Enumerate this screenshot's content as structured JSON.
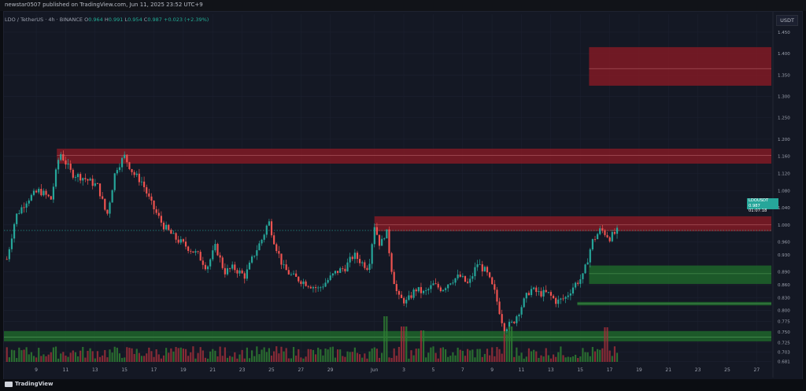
{
  "publisher_line": "newstar0507 published on TradingView.com, Jun 11, 2025 23:52 UTC+9",
  "legend": {
    "symbol": "LDO / TetherUS · 4h · BINANCE",
    "o_label": "O",
    "o": "0.964",
    "h_label": "H",
    "h": "0.991",
    "l_label": "L",
    "l": "0.954",
    "c_label": "C",
    "c": "0.987",
    "change": "+0.023 (+2.39%)"
  },
  "currency": "USDT",
  "price_tag": {
    "symbol": "LDOUSDT",
    "price": "0.987",
    "countdown": "01:07:18"
  },
  "branding": "TradingView",
  "colors": {
    "up": "#26a69a",
    "down": "#ef5350",
    "resistance_zone": "#8b1a24",
    "support_zone": "#1f6b2a",
    "background": "#141824",
    "grid": "#1c2130"
  },
  "chart_data": {
    "type": "candlestick",
    "symbol": "LDO / TetherUS",
    "timeframe": "4h",
    "exchange": "BINANCE",
    "y_range": [
      0.68,
      1.47
    ],
    "y_ticks": [
      "1.450",
      "1.400",
      "1.350",
      "1.300",
      "1.250",
      "1.200",
      "1.160",
      "1.120",
      "1.080",
      "1.040",
      "1.000",
      "0.960",
      "0.930",
      "0.890",
      "0.860",
      "0.830",
      "0.800",
      "0.775",
      "0.750",
      "0.725",
      "0.703",
      "0.681"
    ],
    "y_tick_values": [
      1.45,
      1.4,
      1.35,
      1.3,
      1.25,
      1.2,
      1.16,
      1.12,
      1.08,
      1.04,
      1.0,
      0.96,
      0.93,
      0.89,
      0.86,
      0.83,
      0.8,
      0.775,
      0.75,
      0.725,
      0.703,
      0.681
    ],
    "x_ticks": [
      "9",
      "11",
      "13",
      "15",
      "17",
      "19",
      "21",
      "23",
      "25",
      "27",
      "29",
      "Jun",
      "3",
      "5",
      "7",
      "9",
      "11",
      "13",
      "15",
      "17",
      "19",
      "21",
      "23",
      "25",
      "27"
    ],
    "x_tick_days": [
      -22,
      -20,
      -18,
      -16,
      -14,
      -12,
      -10,
      -8,
      -6,
      -4,
      -2,
      1,
      3,
      5,
      7,
      9,
      11,
      13,
      15,
      17,
      19,
      21,
      23,
      25,
      27
    ],
    "last_close": 0.987,
    "zones": [
      {
        "kind": "resistance",
        "from": 1.325,
        "to": 1.415,
        "mid": 1.365
      },
      {
        "kind": "resistance",
        "from": 1.143,
        "to": 1.178,
        "mid": 1.162
      },
      {
        "kind": "resistance",
        "from": 0.985,
        "to": 1.02,
        "mid": 1.0
      },
      {
        "kind": "support",
        "from": 0.862,
        "to": 0.905,
        "mid": 0.886
      },
      {
        "kind": "support",
        "from": 0.812,
        "to": 0.82,
        "mid": 0.816
      },
      {
        "kind": "support",
        "from": 0.728,
        "to": 0.752,
        "mid": 0.738
      }
    ],
    "price_path": [
      [
        -24.0,
        0.92
      ],
      [
        -23.4,
        1.02
      ],
      [
        -22.6,
        1.06
      ],
      [
        -21.8,
        1.08
      ],
      [
        -21.0,
        1.06
      ],
      [
        -20.4,
        1.17
      ],
      [
        -19.6,
        1.12
      ],
      [
        -18.8,
        1.11
      ],
      [
        -17.8,
        1.09
      ],
      [
        -17.2,
        1.02
      ],
      [
        -16.6,
        1.13
      ],
      [
        -16.0,
        1.16
      ],
      [
        -15.4,
        1.12
      ],
      [
        -14.8,
        1.1
      ],
      [
        -14.2,
        1.05
      ],
      [
        -13.4,
        1.0
      ],
      [
        -12.6,
        0.97
      ],
      [
        -11.8,
        0.95
      ],
      [
        -11.0,
        0.93
      ],
      [
        -10.4,
        0.9
      ],
      [
        -9.8,
        0.95
      ],
      [
        -9.2,
        0.89
      ],
      [
        -8.6,
        0.9
      ],
      [
        -7.8,
        0.88
      ],
      [
        -7.2,
        0.93
      ],
      [
        -6.6,
        0.97
      ],
      [
        -6.2,
        1.01
      ],
      [
        -5.8,
        0.96
      ],
      [
        -5.2,
        0.9
      ],
      [
        -4.6,
        0.88
      ],
      [
        -4.0,
        0.87
      ],
      [
        -3.4,
        0.86
      ],
      [
        -2.8,
        0.85
      ],
      [
        -2.2,
        0.87
      ],
      [
        -1.6,
        0.89
      ],
      [
        -1.0,
        0.9
      ],
      [
        -0.4,
        0.93
      ],
      [
        0.2,
        0.91
      ],
      [
        0.6,
        0.9
      ],
      [
        1.0,
        1.0
      ],
      [
        1.4,
        0.95
      ],
      [
        1.8,
        0.99
      ],
      [
        2.2,
        0.89
      ],
      [
        2.6,
        0.83
      ],
      [
        3.2,
        0.82
      ],
      [
        3.8,
        0.85
      ],
      [
        4.4,
        0.84
      ],
      [
        5.0,
        0.86
      ],
      [
        5.6,
        0.85
      ],
      [
        6.2,
        0.87
      ],
      [
        6.8,
        0.88
      ],
      [
        7.4,
        0.86
      ],
      [
        8.0,
        0.91
      ],
      [
        8.6,
        0.89
      ],
      [
        9.2,
        0.84
      ],
      [
        9.8,
        0.76
      ],
      [
        10.4,
        0.77
      ],
      [
        11.0,
        0.81
      ],
      [
        11.6,
        0.85
      ],
      [
        12.2,
        0.84
      ],
      [
        12.8,
        0.84
      ],
      [
        13.4,
        0.82
      ],
      [
        14.0,
        0.83
      ],
      [
        14.6,
        0.86
      ],
      [
        15.2,
        0.88
      ],
      [
        15.8,
        0.96
      ],
      [
        16.4,
        0.99
      ],
      [
        17.0,
        0.97
      ],
      [
        17.6,
        0.987
      ]
    ],
    "volume_spikes": [
      [
        1.8,
        58
      ],
      [
        3.0,
        45
      ],
      [
        4.2,
        40
      ],
      [
        10.0,
        35
      ],
      [
        10.3,
        45
      ],
      [
        16.8,
        44
      ]
    ]
  }
}
